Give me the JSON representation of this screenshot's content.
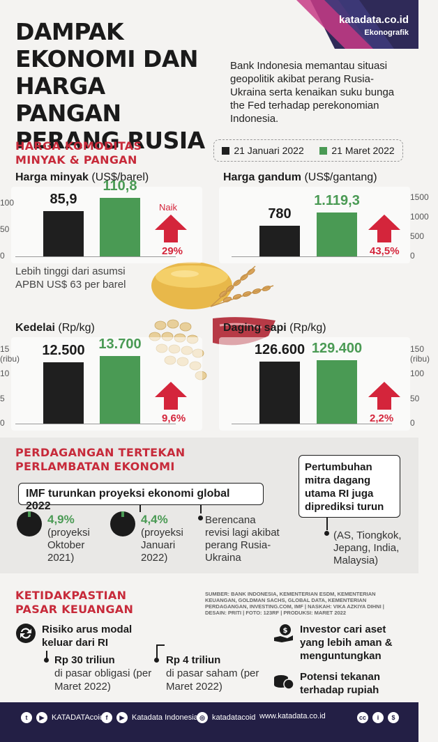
{
  "header": {
    "title": "DAMPAK EKONOMI DAN HARGA PANGAN PERANG RUSIA",
    "intro": "Bank Indonesia memantau situasi geopolitik akibat perang Rusia-Ukraina serta kenaikan suku bunga the Fed terhadap perekonomian Indonesia.",
    "brand": "katadata.co.id",
    "brand_sub": "Ekonografik"
  },
  "commodities": {
    "section_title": "HARGA KOMODITAS MINYAK & PANGAN",
    "legend": [
      {
        "label": "21 Januari 2022",
        "color": "#1f1f1f"
      },
      {
        "label": "21 Maret 2022",
        "color": "#4a9a54"
      }
    ],
    "naik_label": "Naik",
    "oil_note": "Lebih tinggi dari asumsi APBN US$ 63 per barel"
  },
  "chart_data": [
    {
      "type": "bar",
      "title": "Harga minyak",
      "unit": "(US$/barel)",
      "categories": [
        "21 Januari 2022",
        "21 Maret 2022"
      ],
      "values": [
        85.9,
        110.8
      ],
      "value_labels": [
        "85,9",
        "110,8"
      ],
      "ylim": [
        0,
        110.8
      ],
      "yticks": [
        "0",
        "50",
        "100"
      ],
      "ytick_values": [
        0,
        50,
        100
      ],
      "ytick_unit": "",
      "change": "29%"
    },
    {
      "type": "bar",
      "title": "Harga gandum",
      "unit": "(US$/gantang)",
      "categories": [
        "21 Januari 2022",
        "21 Maret 2022"
      ],
      "values": [
        780,
        1119.3
      ],
      "value_labels": [
        "780",
        "1.119,3"
      ],
      "ylim": [
        0,
        1500
      ],
      "yticks": [
        "0",
        "500",
        "1000",
        "1500"
      ],
      "ytick_values": [
        0,
        500,
        1000,
        1500
      ],
      "ytick_unit": "",
      "change": "43,5%"
    },
    {
      "type": "bar",
      "title": "Kedelai",
      "unit": "(Rp/kg)",
      "categories": [
        "21 Januari 2022",
        "21 Maret 2022"
      ],
      "values": [
        12500,
        13700
      ],
      "value_labels": [
        "12.500",
        "13.700"
      ],
      "ylim": [
        0,
        15000
      ],
      "yticks": [
        "0",
        "5",
        "10",
        "15"
      ],
      "ytick_values": [
        0,
        5000,
        10000,
        15000
      ],
      "ytick_unit": "(ribu)",
      "change": "9,6%"
    },
    {
      "type": "bar",
      "title": "Daging sapi",
      "unit": "(Rp/kg)",
      "categories": [
        "21 Januari 2022",
        "21 Maret 2022"
      ],
      "values": [
        126600,
        129400
      ],
      "value_labels": [
        "126.600",
        "129.400"
      ],
      "ylim": [
        0,
        150000
      ],
      "yticks": [
        "0",
        "50",
        "100",
        "150"
      ],
      "ytick_values": [
        0,
        50000,
        100000,
        150000
      ],
      "ytick_unit": "(ribu)",
      "change": "2,2%"
    }
  ],
  "trade": {
    "section_title": "PERDAGANGAN TERTEKAN PERLAMBATAN EKONOMI",
    "imf_box": "IMF turunkan proyeksi ekonomi global 2022",
    "imf": [
      {
        "value": "4,9%",
        "label": "(proyeksi Oktober 2021)"
      },
      {
        "value": "4,4%",
        "label": "(proyeksi Januari 2022)"
      }
    ],
    "imf_note": "Berencana revisi lagi akibat perang Rusia-Ukraina",
    "partner_box": "Pertumbuhan mitra dagang utama RI juga diprediksi turun",
    "partner_list": "(AS, Tiongkok, Jepang, India, Malaysia)"
  },
  "finance": {
    "section_title": "KETIDAKPASTIAN PASAR KEUANGAN",
    "source": "SUMBER: BANK INDONESIA, KEMENTERIAN ESDM, KEMENTERIAN KEUANGAN, GOLDMAN SACHS, GLOBAL DATA, KEMENTERIAN PERDAGANGAN, INVESTING.COM, IMF | NASKAH: VIKA AZKIYA DIHNI | DESAIN: PRITI | FOTO: 123RF | PRODUKSI: MARET 2022",
    "risk_title": "Risiko arus modal keluar dari RI",
    "bond_value": "Rp 30 triliun",
    "bond_label": "di pasar obligasi (per Maret 2022)",
    "stock_value": "Rp 4 triliun",
    "stock_label": "di pasar saham (per Maret 2022)",
    "investor": "Investor cari aset yang lebih aman & menguntungkan",
    "rupiah": "Potensi tekanan terhadap rupiah"
  },
  "footer": {
    "social1": "KATADATAcoid",
    "social2": "Katadata Indonesia",
    "social3": "katadatacoid",
    "website": "www.katadata.co.id"
  },
  "colors": {
    "accent_red": "#c72a3a",
    "green": "#4a9a54",
    "dark": "#1f1f1f",
    "navy": "#231f45"
  },
  "icons": [
    "twitter-icon",
    "facebook-icon",
    "youtube-icon",
    "instagram-icon",
    "cc-icon",
    "exchange-icon",
    "hand-money-icon",
    "coins-icon",
    "up-arrow-icon"
  ]
}
